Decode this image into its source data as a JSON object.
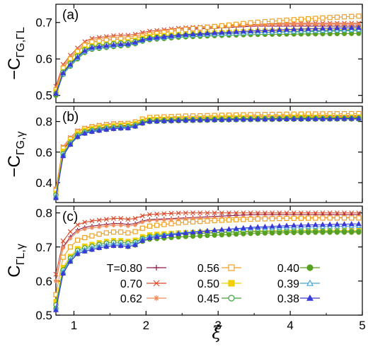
{
  "x_axis_label": "ξ",
  "legend_prefix": "T=",
  "chart_data": [
    {
      "panel": "(a)",
      "type": "line",
      "ylabel_main": "−C",
      "ylabel_sub": "ΓG,ΓL",
      "xlim": [
        0.75,
        5.0
      ],
      "ylim": [
        0.48,
        0.75
      ],
      "yticks": [
        0.5,
        0.6,
        0.7
      ],
      "xticks": [
        1,
        2,
        3,
        4,
        5
      ],
      "x_tick_labels_shown": false,
      "anchors_x": [
        0.75,
        0.8,
        0.9,
        1.0,
        1.05,
        1.1,
        1.2,
        1.4,
        1.6,
        1.8,
        2.0,
        2.5,
        3.0,
        3.5,
        4.0,
        4.5,
        5.0
      ],
      "series": [
        {
          "name": "0.80",
          "y": [
            0.52,
            0.56,
            0.59,
            0.61,
            0.62,
            0.63,
            0.645,
            0.65,
            0.655,
            0.655,
            0.665,
            0.68,
            0.685,
            0.69,
            0.69,
            0.69,
            0.69
          ]
        },
        {
          "name": "0.70",
          "y": [
            0.525,
            0.57,
            0.6,
            0.62,
            0.63,
            0.64,
            0.655,
            0.66,
            0.665,
            0.665,
            0.675,
            0.685,
            0.69,
            0.695,
            0.698,
            0.698,
            0.698
          ]
        },
        {
          "name": "0.62",
          "y": [
            0.52,
            0.565,
            0.595,
            0.615,
            0.625,
            0.635,
            0.65,
            0.655,
            0.66,
            0.66,
            0.67,
            0.683,
            0.688,
            0.693,
            0.695,
            0.695,
            0.695
          ]
        },
        {
          "name": "0.56",
          "y": [
            0.515,
            0.56,
            0.59,
            0.61,
            0.62,
            0.63,
            0.645,
            0.65,
            0.655,
            0.655,
            0.665,
            0.68,
            0.69,
            0.7,
            0.707,
            0.713,
            0.718
          ]
        },
        {
          "name": "0.50",
          "y": [
            0.51,
            0.55,
            0.58,
            0.6,
            0.61,
            0.62,
            0.635,
            0.64,
            0.645,
            0.648,
            0.66,
            0.668,
            0.672,
            0.676,
            0.678,
            0.68,
            0.682
          ]
        },
        {
          "name": "0.45",
          "y": [
            0.505,
            0.55,
            0.578,
            0.598,
            0.608,
            0.618,
            0.632,
            0.638,
            0.643,
            0.645,
            0.657,
            0.665,
            0.669,
            0.672,
            0.674,
            0.676,
            0.678
          ]
        },
        {
          "name": "0.40",
          "y": [
            0.5,
            0.545,
            0.57,
            0.59,
            0.6,
            0.61,
            0.625,
            0.63,
            0.635,
            0.638,
            0.652,
            0.66,
            0.664,
            0.667,
            0.668,
            0.669,
            0.67
          ]
        },
        {
          "name": "0.39",
          "y": [
            0.505,
            0.545,
            0.572,
            0.592,
            0.602,
            0.612,
            0.627,
            0.632,
            0.637,
            0.64,
            0.654,
            0.663,
            0.668,
            0.672,
            0.675,
            0.678,
            0.68
          ]
        },
        {
          "name": "0.38",
          "y": [
            0.505,
            0.548,
            0.575,
            0.595,
            0.605,
            0.615,
            0.63,
            0.635,
            0.64,
            0.642,
            0.656,
            0.666,
            0.672,
            0.677,
            0.681,
            0.684,
            0.686
          ]
        }
      ]
    },
    {
      "panel": "(b)",
      "type": "line",
      "ylabel_main": "−C",
      "ylabel_sub": "ΓG,γ",
      "xlim": [
        0.75,
        5.0
      ],
      "ylim": [
        0.27,
        0.9
      ],
      "yticks": [
        0.4,
        0.6,
        0.8
      ],
      "xticks": [
        1,
        2,
        3,
        4,
        5
      ],
      "x_tick_labels_shown": false,
      "anchors_x": [
        0.75,
        0.8,
        0.9,
        1.0,
        1.05,
        1.1,
        1.2,
        1.4,
        1.6,
        1.8,
        2.0,
        2.5,
        3.0,
        3.5,
        4.0,
        4.5,
        5.0
      ],
      "series": [
        {
          "name": "0.80",
          "y": [
            0.35,
            0.58,
            0.65,
            0.7,
            0.72,
            0.73,
            0.745,
            0.76,
            0.77,
            0.775,
            0.81,
            0.815,
            0.82,
            0.825,
            0.825,
            0.825,
            0.825
          ]
        },
        {
          "name": "0.70",
          "y": [
            0.36,
            0.6,
            0.67,
            0.72,
            0.74,
            0.75,
            0.765,
            0.78,
            0.79,
            0.79,
            0.82,
            0.825,
            0.83,
            0.835,
            0.835,
            0.835,
            0.835
          ]
        },
        {
          "name": "0.62",
          "y": [
            0.36,
            0.6,
            0.67,
            0.72,
            0.74,
            0.75,
            0.765,
            0.78,
            0.79,
            0.79,
            0.82,
            0.827,
            0.832,
            0.837,
            0.84,
            0.84,
            0.84
          ]
        },
        {
          "name": "0.56",
          "y": [
            0.35,
            0.59,
            0.66,
            0.71,
            0.73,
            0.745,
            0.76,
            0.775,
            0.785,
            0.788,
            0.825,
            0.835,
            0.84,
            0.845,
            0.848,
            0.85,
            0.852
          ]
        },
        {
          "name": "0.50",
          "y": [
            0.33,
            0.57,
            0.64,
            0.7,
            0.72,
            0.735,
            0.75,
            0.765,
            0.775,
            0.778,
            0.81,
            0.818,
            0.822,
            0.825,
            0.827,
            0.828,
            0.83
          ]
        },
        {
          "name": "0.45",
          "y": [
            0.32,
            0.55,
            0.63,
            0.69,
            0.71,
            0.725,
            0.74,
            0.755,
            0.765,
            0.768,
            0.805,
            0.812,
            0.816,
            0.819,
            0.821,
            0.822,
            0.823
          ]
        },
        {
          "name": "0.40",
          "y": [
            0.3,
            0.53,
            0.62,
            0.68,
            0.7,
            0.715,
            0.73,
            0.745,
            0.755,
            0.758,
            0.798,
            0.805,
            0.809,
            0.812,
            0.814,
            0.815,
            0.816
          ]
        },
        {
          "name": "0.39",
          "y": [
            0.31,
            0.54,
            0.625,
            0.685,
            0.705,
            0.72,
            0.735,
            0.75,
            0.76,
            0.763,
            0.8,
            0.808,
            0.812,
            0.815,
            0.817,
            0.818,
            0.819
          ]
        },
        {
          "name": "0.38",
          "y": [
            0.3,
            0.53,
            0.62,
            0.68,
            0.7,
            0.715,
            0.73,
            0.745,
            0.755,
            0.758,
            0.8,
            0.808,
            0.812,
            0.815,
            0.817,
            0.818,
            0.82
          ]
        }
      ]
    },
    {
      "panel": "(c)",
      "type": "line",
      "ylabel_main": "C",
      "ylabel_sub": "ΓL,γ",
      "xlim": [
        0.75,
        5.0
      ],
      "ylim": [
        0.5,
        0.82
      ],
      "yticks": [
        0.5,
        0.6,
        0.7,
        0.8
      ],
      "xticks": [
        1,
        2,
        3,
        4,
        5
      ],
      "x_tick_labels_shown": true,
      "anchors_x": [
        0.75,
        0.8,
        0.9,
        1.0,
        1.05,
        1.1,
        1.2,
        1.4,
        1.6,
        1.8,
        2.0,
        2.5,
        3.0,
        3.5,
        4.0,
        4.5,
        5.0
      ],
      "series": [
        {
          "name": "0.80",
          "y": [
            0.6,
            0.68,
            0.72,
            0.74,
            0.75,
            0.755,
            0.76,
            0.765,
            0.77,
            0.765,
            0.78,
            0.785,
            0.79,
            0.795,
            0.795,
            0.795,
            0.795
          ]
        },
        {
          "name": "0.70",
          "y": [
            0.62,
            0.7,
            0.735,
            0.755,
            0.765,
            0.77,
            0.775,
            0.78,
            0.785,
            0.78,
            0.795,
            0.8,
            0.8,
            0.8,
            0.8,
            0.8,
            0.8
          ]
        },
        {
          "name": "0.62",
          "y": [
            0.6,
            0.68,
            0.715,
            0.735,
            0.745,
            0.75,
            0.755,
            0.76,
            0.765,
            0.76,
            0.777,
            0.782,
            0.785,
            0.787,
            0.787,
            0.787,
            0.787
          ]
        },
        {
          "name": "0.56",
          "y": [
            0.56,
            0.65,
            0.69,
            0.71,
            0.72,
            0.725,
            0.73,
            0.74,
            0.745,
            0.74,
            0.76,
            0.772,
            0.778,
            0.782,
            0.784,
            0.785,
            0.785
          ]
        },
        {
          "name": "0.50",
          "y": [
            0.54,
            0.62,
            0.66,
            0.685,
            0.695,
            0.7,
            0.705,
            0.715,
            0.72,
            0.715,
            0.735,
            0.742,
            0.745,
            0.747,
            0.748,
            0.748,
            0.748
          ]
        },
        {
          "name": "0.45",
          "y": [
            0.53,
            0.61,
            0.655,
            0.68,
            0.69,
            0.695,
            0.7,
            0.71,
            0.715,
            0.71,
            0.73,
            0.738,
            0.742,
            0.745,
            0.746,
            0.746,
            0.746
          ]
        },
        {
          "name": "0.40",
          "y": [
            0.52,
            0.6,
            0.645,
            0.67,
            0.68,
            0.685,
            0.69,
            0.7,
            0.705,
            0.7,
            0.722,
            0.73,
            0.735,
            0.74,
            0.742,
            0.743,
            0.743
          ]
        },
        {
          "name": "0.39",
          "y": [
            0.52,
            0.605,
            0.65,
            0.675,
            0.685,
            0.69,
            0.695,
            0.705,
            0.71,
            0.705,
            0.73,
            0.742,
            0.75,
            0.755,
            0.758,
            0.76,
            0.762
          ]
        },
        {
          "name": "0.38",
          "y": [
            0.515,
            0.6,
            0.645,
            0.67,
            0.68,
            0.685,
            0.69,
            0.7,
            0.705,
            0.7,
            0.725,
            0.74,
            0.75,
            0.758,
            0.763,
            0.766,
            0.768
          ]
        }
      ]
    }
  ],
  "legend": [
    {
      "label": "0.80",
      "color": "#8b1a4a",
      "marker": "plus"
    },
    {
      "label": "0.70",
      "color": "#d94a2a",
      "marker": "x"
    },
    {
      "label": "0.62",
      "color": "#f08a5a",
      "marker": "star"
    },
    {
      "label": "0.56",
      "color": "#f0a020",
      "marker": "square-open"
    },
    {
      "label": "0.50",
      "color": "#f0d000",
      "marker": "square-filled"
    },
    {
      "label": "0.45",
      "color": "#40a040",
      "marker": "circle-open"
    },
    {
      "label": "0.40",
      "color": "#58a020",
      "marker": "circle-filled"
    },
    {
      "label": "0.39",
      "color": "#48a8d8",
      "marker": "triangle-open"
    },
    {
      "label": "0.38",
      "color": "#3a3ad8",
      "marker": "triangle-filled"
    }
  ]
}
